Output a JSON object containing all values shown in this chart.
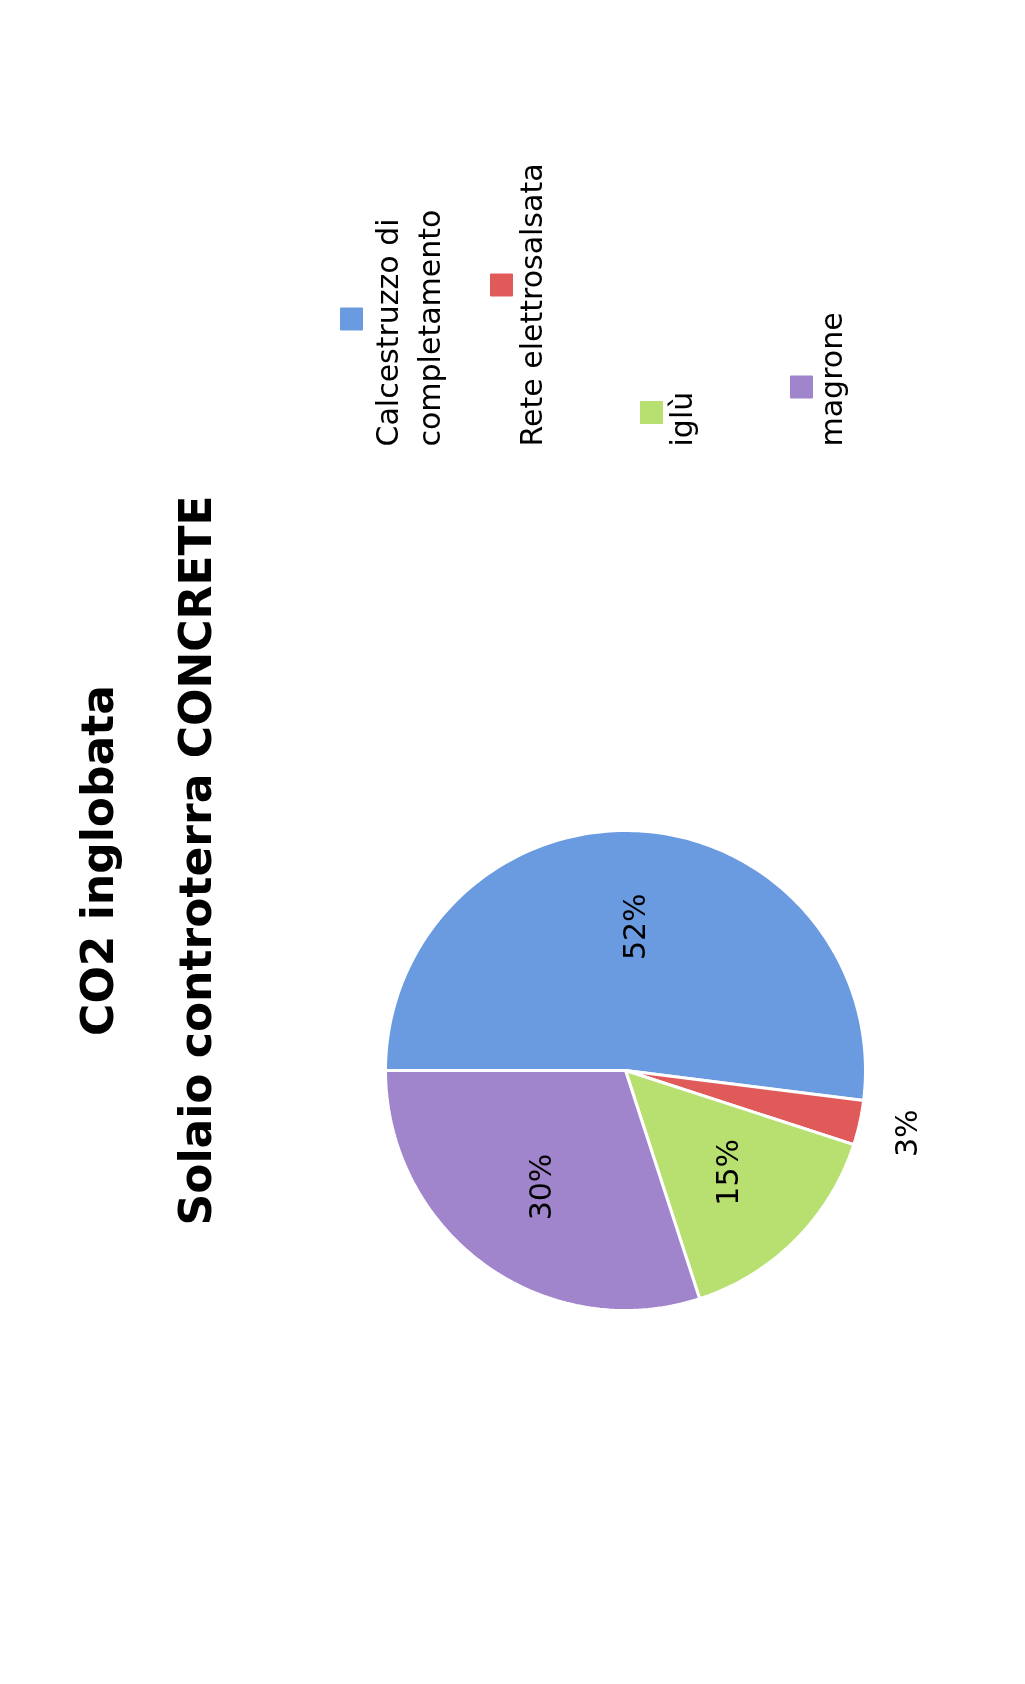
{
  "chart_data": {
    "type": "pie",
    "title": "CO2 inglobata",
    "subtitle": "Solaio controterra CONCRETE",
    "categories": [
      "Calcestruzzo di completamento",
      "Rete elettrosalsata",
      "iglù",
      "magrone"
    ],
    "values": [
      52,
      3,
      15,
      30
    ],
    "colors": [
      "#6a9be0",
      "#e05a5a",
      "#b8e070",
      "#a084cc"
    ],
    "value_labels": [
      "52%",
      "3%",
      "15%",
      "30%"
    ],
    "data_labels": true,
    "legend": "top left"
  }
}
